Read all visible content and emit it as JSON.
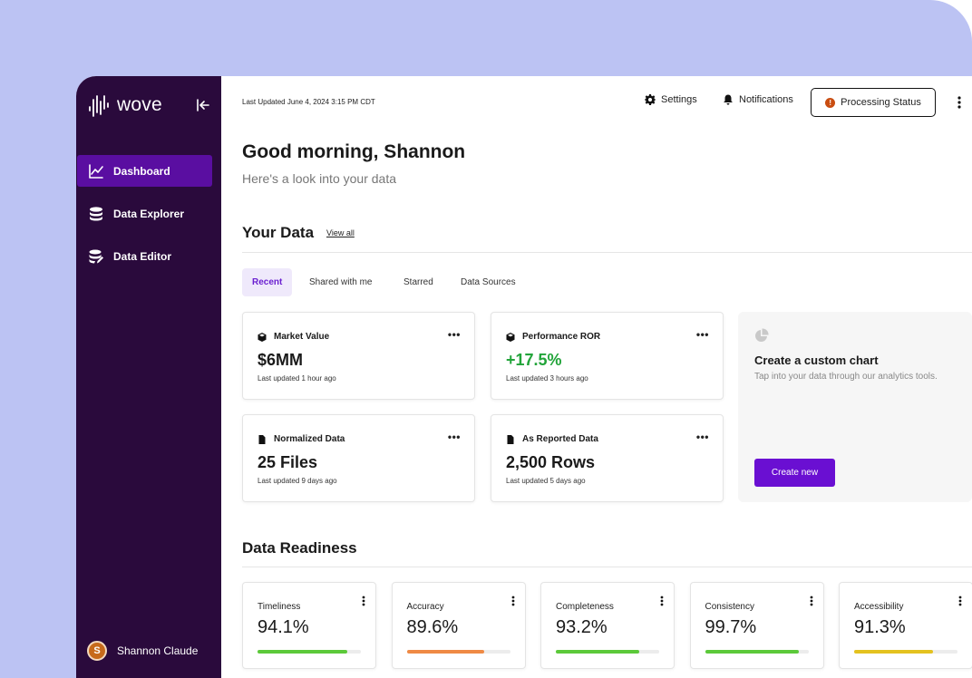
{
  "app": {
    "name": "wove"
  },
  "sidebar": {
    "items": [
      {
        "label": "Dashboard",
        "icon": "chart-line-icon",
        "active": true
      },
      {
        "label": "Data Explorer",
        "icon": "database-icon",
        "active": false
      },
      {
        "label": "Data Editor",
        "icon": "database-edit-icon",
        "active": false
      }
    ],
    "user": {
      "initial": "S",
      "name": "Shannon Claude"
    }
  },
  "header": {
    "last_updated": "Last Updated June 4, 2024 3:15 PM CDT",
    "settings_label": "Settings",
    "notifications_label": "Notifications",
    "processing_label": "Processing Status",
    "processing_badge": "!"
  },
  "greeting": {
    "title": "Good morning, Shannon",
    "subtitle": "Here's a look into your data"
  },
  "your_data": {
    "title": "Your Data",
    "view_all": "View all",
    "tabs": [
      "Recent",
      "Shared with me",
      "Starred",
      "Data Sources"
    ],
    "cards": [
      {
        "title": "Market Value",
        "value": "$6MM",
        "updated": "Last updated 1 hour ago",
        "more": "•••",
        "value_color": "#1a1a1a"
      },
      {
        "title": "Performance ROR",
        "value": "+17.5%",
        "updated": "Last updated 3 hours ago",
        "more": "•••",
        "value_color": "#22a43a"
      },
      {
        "title": "Normalized Data",
        "value": "25 Files",
        "updated": "Last updated 9 days ago",
        "more": "•••",
        "value_color": "#1a1a1a"
      },
      {
        "title": "As Reported Data",
        "value": "2,500 Rows",
        "updated": "Last updated 5 days ago",
        "more": "•••",
        "value_color": "#1a1a1a"
      }
    ],
    "custom_chart": {
      "title": "Create a custom chart",
      "subtitle": "Tap into your data through our analytics tools.",
      "button": "Create new"
    }
  },
  "data_readiness": {
    "title": "Data Readiness",
    "metrics": [
      {
        "label": "Timeliness",
        "value": "94.1%",
        "fill_fraction": 0.87,
        "color": "#5cc93a"
      },
      {
        "label": "Accuracy",
        "value": "89.6%",
        "fill_fraction": 0.75,
        "color": "#ef8a45"
      },
      {
        "label": "Completeness",
        "value": "93.2%",
        "fill_fraction": 0.81,
        "color": "#5cc93a"
      },
      {
        "label": "Consistency",
        "value": "99.7%",
        "fill_fraction": 0.91,
        "color": "#5cc93a"
      },
      {
        "label": "Accessibility",
        "value": "91.3%",
        "fill_fraction": 0.76,
        "color": "#e4c21f"
      }
    ]
  },
  "colors": {
    "sidebar": "#2a0a3c",
    "sidebar_active": "#5a0ea1",
    "accent": "#6a0fd2",
    "background_frame": "#bcc3f3"
  }
}
